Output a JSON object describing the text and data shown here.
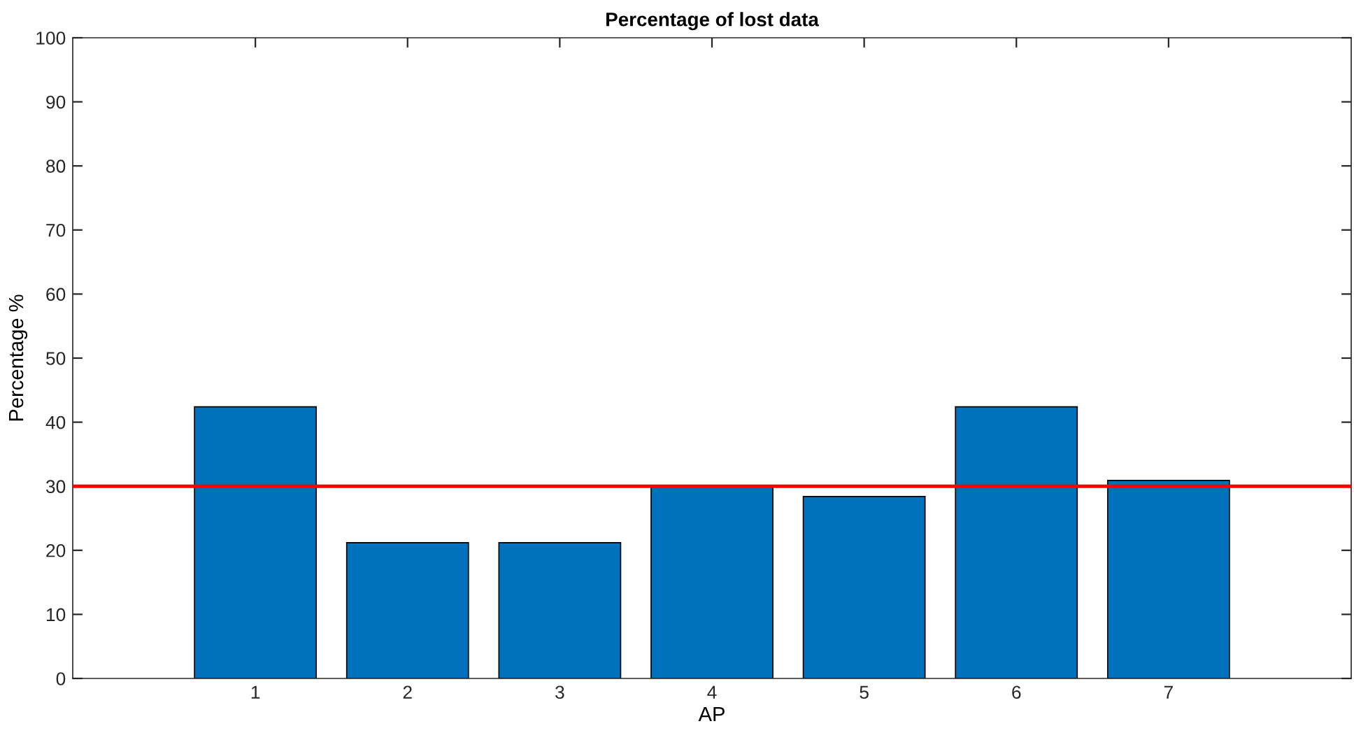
{
  "chart_data": {
    "type": "bar",
    "title": "Percentage of lost data",
    "xlabel": "AP",
    "ylabel": "Percentage %",
    "x": [
      1,
      2,
      3,
      4,
      5,
      6,
      7
    ],
    "values": [
      42.4,
      21.2,
      21.2,
      30.1,
      28.4,
      42.4,
      30.9
    ],
    "color": "#0072bd",
    "xlim": [
      -0.2,
      8.2
    ],
    "xticks": [
      1,
      2,
      3,
      4,
      5,
      6,
      7
    ],
    "ylim": [
      0,
      100
    ],
    "yticks": [
      0,
      10,
      20,
      30,
      40,
      50,
      60,
      70,
      80,
      90,
      100
    ],
    "ref_lines": [
      {
        "axis": "y",
        "value": 30,
        "color": "#ff0000"
      }
    ],
    "grid": false,
    "legend": false
  }
}
